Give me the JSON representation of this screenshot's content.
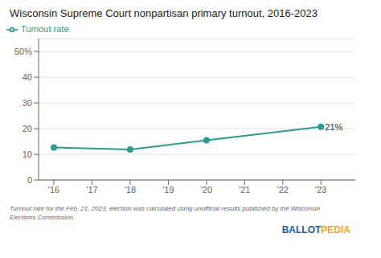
{
  "chart_data": {
    "type": "line",
    "title": "Wisconsin Supreme Court nonpartisan primary turnout, 2016-2023",
    "x": [
      2016,
      2018,
      2020,
      2023
    ],
    "series": [
      {
        "name": "Turnout rate",
        "color": "#2a9d8f",
        "marker": "circle",
        "values": [
          12.7,
          11.9,
          15.5,
          20.7
        ]
      }
    ],
    "xlim": [
      2015.6,
      2023.9
    ],
    "xticks": [
      {
        "value": 2016,
        "label": "'16"
      },
      {
        "value": 2017,
        "label": "'17"
      },
      {
        "value": 2018,
        "label": "'18"
      },
      {
        "value": 2019,
        "label": "'19"
      },
      {
        "value": 2020,
        "label": "'20"
      },
      {
        "value": 2021,
        "label": "'21"
      },
      {
        "value": 2022,
        "label": "'22"
      },
      {
        "value": 2023,
        "label": "'23"
      }
    ],
    "ylim": [
      0,
      55
    ],
    "yticks": [
      0,
      10,
      20,
      30,
      40,
      {
        "value": 50,
        "label": "50%"
      }
    ],
    "grid": "y",
    "legend": "upper left",
    "annotations": [
      {
        "text": "21%",
        "x": 2023,
        "y": 20.7
      }
    ],
    "footnote": [
      "Turnout rate for the Feb. 21, 2023, election was calculated using unofficial results published by the Wisconsin",
      "Elections Commission."
    ],
    "branding": [
      {
        "text": "BALLOT",
        "color": "#236192"
      },
      {
        "text": "PEDIA",
        "color": "#f5a623"
      }
    ]
  }
}
